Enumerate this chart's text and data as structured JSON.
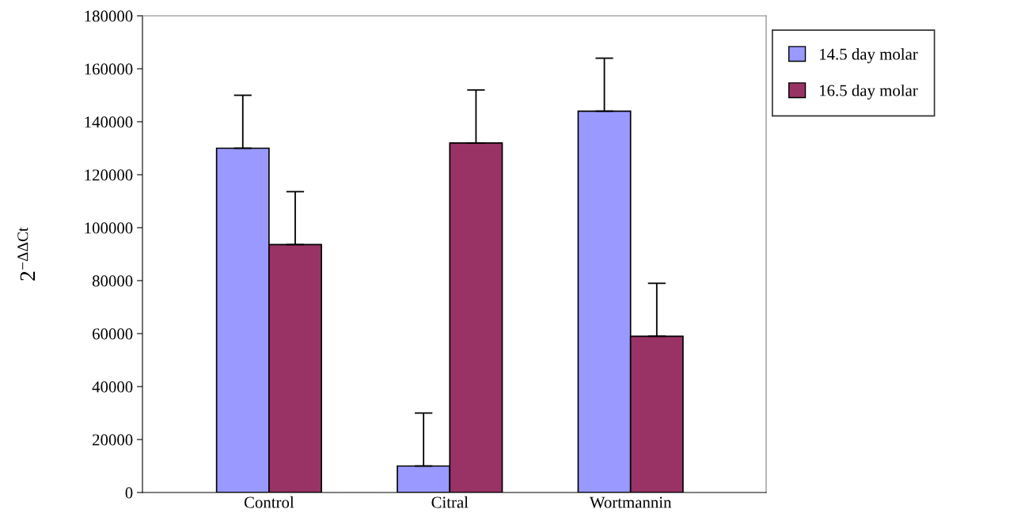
{
  "chart_data": {
    "type": "bar",
    "ylabel": "2$^{−ΔΔCt}$",
    "categories": [
      "Control",
      "Citral",
      "Wortmannin"
    ],
    "series": [
      {
        "name": "14.5 day molar",
        "color": "#9999ff",
        "values": [
          130000,
          10000,
          144000
        ],
        "errors": [
          [
            130000,
            150000
          ],
          [
            10000,
            30000
          ],
          [
            144000,
            164000
          ]
        ]
      },
      {
        "name": "16.5 day molar",
        "color": "#993366",
        "values": [
          93600,
          132000,
          59000
        ],
        "errors": [
          [
            93600,
            113600
          ],
          [
            132000,
            152000
          ],
          [
            59000,
            79000
          ]
        ]
      }
    ],
    "ylim": [
      0,
      180000
    ],
    "yticks": [
      0,
      20000,
      40000,
      60000,
      80000,
      100000,
      120000,
      140000,
      160000,
      180000
    ],
    "grid": false,
    "legend": "right"
  }
}
